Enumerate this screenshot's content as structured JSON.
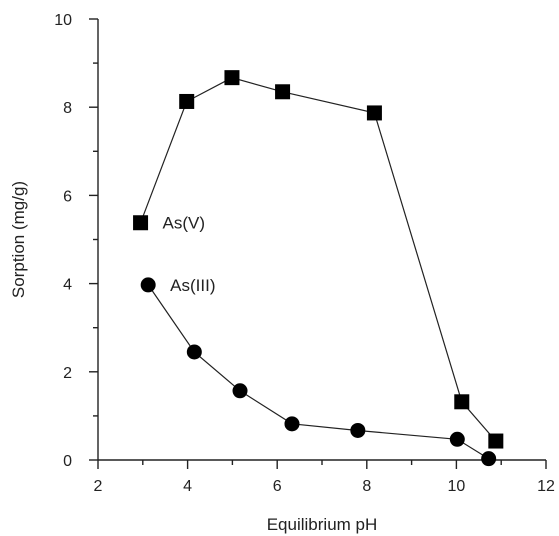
{
  "chart_data": {
    "type": "scatter",
    "title": "",
    "xlabel": "Equilibrium pH",
    "ylabel": "Sorption (mg/g)",
    "xlim": [
      2,
      12
    ],
    "ylim": [
      0,
      10
    ],
    "x_ticks": [
      2,
      4,
      6,
      8,
      10,
      12
    ],
    "x_minor_ticks": [
      3,
      5,
      7,
      9,
      11
    ],
    "y_ticks": [
      0,
      2,
      4,
      6,
      8,
      10
    ],
    "y_minor_ticks": [
      1,
      3,
      5,
      7,
      9
    ],
    "grid": false,
    "legend": "none",
    "series": [
      {
        "name": "As(V)",
        "marker": "square",
        "color": "#000000",
        "points": [
          {
            "x": 2.95,
            "y": 5.38
          },
          {
            "x": 3.98,
            "y": 8.13
          },
          {
            "x": 4.99,
            "y": 8.67
          },
          {
            "x": 6.12,
            "y": 8.35
          },
          {
            "x": 8.17,
            "y": 7.87
          },
          {
            "x": 10.12,
            "y": 1.32
          },
          {
            "x": 10.88,
            "y": 0.43
          }
        ]
      },
      {
        "name": "As(III)",
        "marker": "circle",
        "color": "#000000",
        "points": [
          {
            "x": 3.12,
            "y": 3.97
          },
          {
            "x": 4.15,
            "y": 2.45
          },
          {
            "x": 5.17,
            "y": 1.57
          },
          {
            "x": 6.33,
            "y": 0.82
          },
          {
            "x": 7.8,
            "y": 0.67
          },
          {
            "x": 10.02,
            "y": 0.47
          },
          {
            "x": 10.72,
            "y": 0.03
          }
        ]
      }
    ]
  }
}
